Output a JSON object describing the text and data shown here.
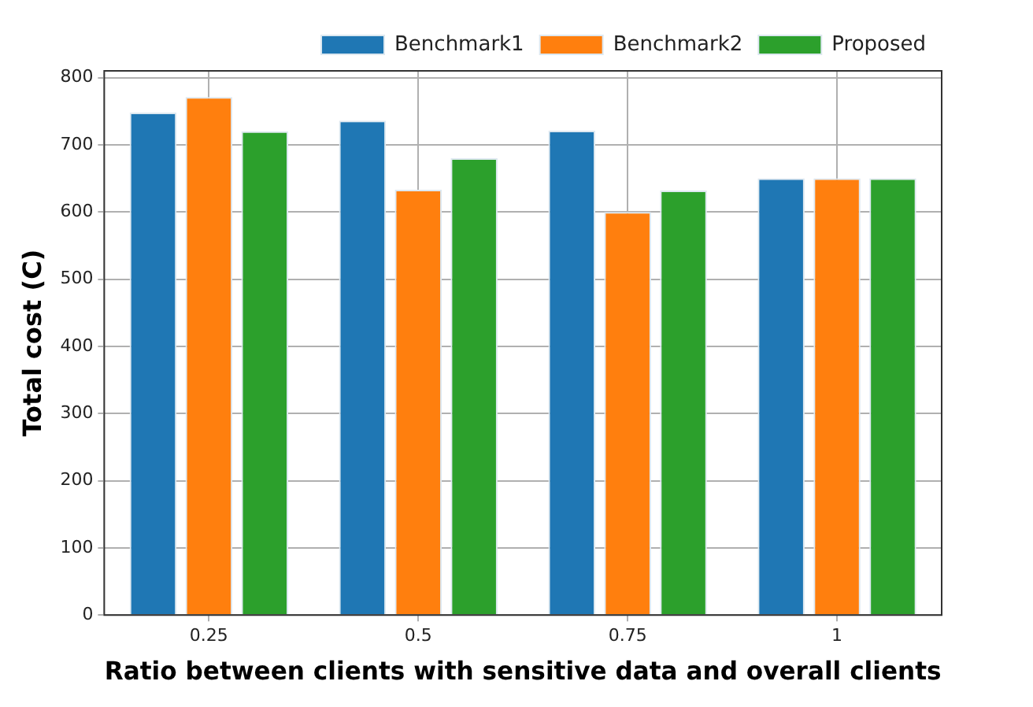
{
  "chart_data": {
    "type": "bar",
    "xlabel": "Ratio between clients with sensitive data and overall clients",
    "ylabel": "Total cost (C)",
    "categories": [
      "0.25",
      "0.5",
      "0.75",
      "1"
    ],
    "series": [
      {
        "name": "Benchmark1",
        "color": "#1f77b4",
        "values": [
          748,
          736,
          721,
          650
        ]
      },
      {
        "name": "Benchmark2",
        "color": "#ff7f0e",
        "values": [
          771,
          633,
          600,
          650
        ]
      },
      {
        "name": "Proposed",
        "color": "#2ca02c",
        "values": [
          720,
          680,
          632,
          650
        ]
      }
    ],
    "ylim": [
      0,
      810
    ],
    "yticks": [
      0,
      100,
      200,
      300,
      400,
      500,
      600,
      700,
      800
    ],
    "grid": true,
    "legend": "top right"
  }
}
